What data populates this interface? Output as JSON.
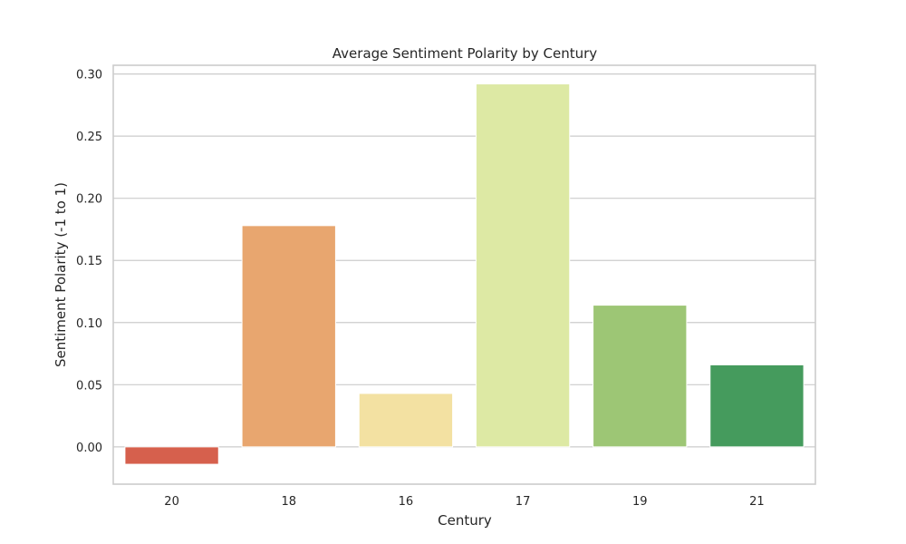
{
  "chart_data": {
    "type": "bar",
    "title": "Average Sentiment Polarity by Century",
    "xlabel": "Century",
    "ylabel": "Sentiment Polarity (-1 to 1)",
    "categories": [
      "20",
      "18",
      "16",
      "17",
      "19",
      "21"
    ],
    "values": [
      -0.014,
      0.178,
      0.043,
      0.292,
      0.114,
      0.066
    ],
    "colors": [
      "#d6604d",
      "#e8a66f",
      "#f3e1a2",
      "#dde9a4",
      "#9dc675",
      "#459b5d"
    ],
    "ylim": [
      -0.03,
      0.307
    ],
    "yticks": [
      0.0,
      0.05,
      0.1,
      0.15,
      0.2,
      0.25,
      0.3
    ],
    "ytick_labels": [
      "0.00",
      "0.05",
      "0.10",
      "0.15",
      "0.20",
      "0.25",
      "0.30"
    ],
    "grid": true,
    "legend": false
  }
}
